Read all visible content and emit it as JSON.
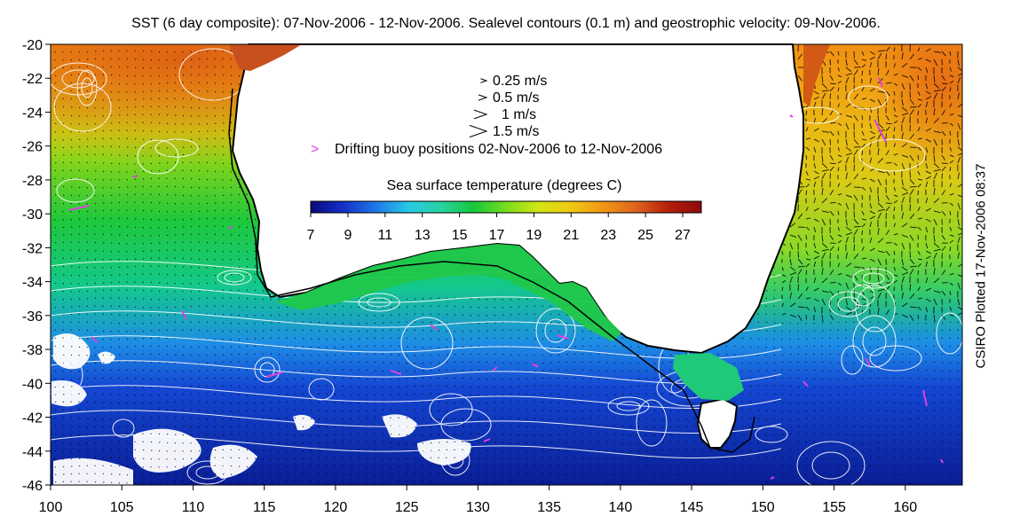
{
  "title": "SST (6 day composite): 07-Nov-2006 - 12-Nov-2006. Sealevel contours (0.1 m) and geostrophic velocity: 09-Nov-2006.",
  "credit": "CSIRO Plotted 17-Nov-2006 08:37",
  "legend": {
    "arrows": [
      {
        "label": "0.25 m/s",
        "speed": 0.25
      },
      {
        "label": "0.5 m/s",
        "speed": 0.5
      },
      {
        "label": "1 m/s",
        "speed": 1
      },
      {
        "label": "1.5 m/s",
        "speed": 1.5
      }
    ],
    "buoy_symbol": ">",
    "buoy_label": "Drifting buoy positions 02-Nov-2006 to 12-Nov-2006"
  },
  "colorbar": {
    "title": "Sea surface temperature (degrees C)",
    "min": 7,
    "max": 28,
    "ticks": [
      "7",
      "9",
      "11",
      "13",
      "15",
      "17",
      "19",
      "21",
      "23",
      "25",
      "27"
    ],
    "colors": [
      "#0a0a7a",
      "#1430c8",
      "#1e78e6",
      "#28c8e6",
      "#2ad2a0",
      "#14c83c",
      "#78dc1e",
      "#d2e614",
      "#f0c814",
      "#f09614",
      "#dc641e",
      "#b41e0a",
      "#8c0a0a"
    ]
  },
  "axes": {
    "x_ticks": [
      "100",
      "105",
      "110",
      "115",
      "120",
      "125",
      "130",
      "135",
      "140",
      "145",
      "150",
      "155",
      "160"
    ],
    "y_ticks": [
      "-20",
      "-22",
      "-24",
      "-26",
      "-28",
      "-30",
      "-32",
      "-34",
      "-36",
      "-38",
      "-40",
      "-42",
      "-44",
      "-46"
    ],
    "lon_range": [
      100,
      164
    ],
    "lat_range": [
      -46,
      -20
    ]
  },
  "colors": {
    "land": "#ffffff",
    "coast": "#000000",
    "contours": "#ffffff",
    "vectors": "#000000",
    "buoy": "#e040e0",
    "cloud": "#ffffff"
  }
}
